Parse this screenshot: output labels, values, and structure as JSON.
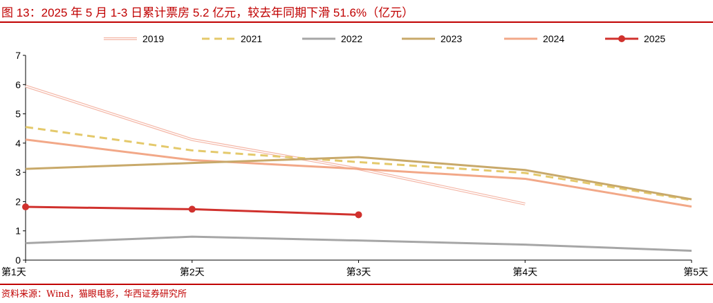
{
  "header": {
    "title": "图 13：2025 年 5 月 1-3 日累计票房 5.2 亿元，较去年同期下滑 51.6%（亿元）"
  },
  "footer": {
    "source": "资料来源：Wind，猫眼电影，华西证券研究所"
  },
  "colors": {
    "accent": "#c00000"
  },
  "chart_data": {
    "type": "line",
    "title": "",
    "xlabel": "",
    "ylabel": "",
    "categories": [
      "第1天",
      "第2天",
      "第3天",
      "第4天",
      "第5天"
    ],
    "ylim": [
      0,
      7
    ],
    "yticks": [
      0,
      1,
      2,
      3,
      4,
      5,
      6,
      7
    ],
    "grid": false,
    "legend_position": "top",
    "series": [
      {
        "name": "2019",
        "values": [
          5.95,
          4.12,
          3.12,
          1.92,
          null
        ],
        "color": "#f4b6a6",
        "style": "double"
      },
      {
        "name": "2021",
        "values": [
          4.55,
          3.75,
          3.35,
          2.98,
          2.05
        ],
        "color": "#e4c96b",
        "style": "dashed"
      },
      {
        "name": "2022",
        "values": [
          0.58,
          0.8,
          0.67,
          0.53,
          0.32
        ],
        "color": "#a6a6a6",
        "style": "solid"
      },
      {
        "name": "2023",
        "values": [
          3.12,
          3.32,
          3.52,
          3.08,
          2.08
        ],
        "color": "#c8a96a",
        "style": "solid"
      },
      {
        "name": "2024",
        "values": [
          4.12,
          3.42,
          3.12,
          2.78,
          1.83
        ],
        "color": "#f2a888",
        "style": "solid"
      },
      {
        "name": "2025",
        "values": [
          1.82,
          1.74,
          1.55,
          null,
          null
        ],
        "color": "#d0312d",
        "style": "marker"
      }
    ]
  }
}
